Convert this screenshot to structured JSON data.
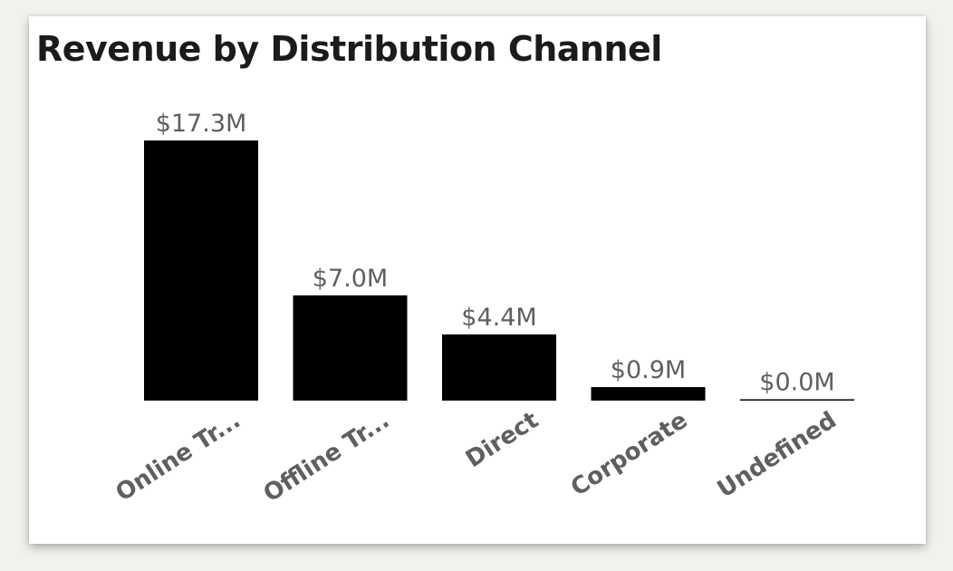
{
  "chart_data": {
    "type": "bar",
    "title": "Revenue by Distribution Channel",
    "categories": [
      "Online Tr...",
      "Offline Tr...",
      "Direct",
      "Corporate",
      "Undefined"
    ],
    "values": [
      17.3,
      7.0,
      4.4,
      0.9,
      0.0
    ],
    "data_labels": [
      "$17.3M",
      "$7.0M",
      "$4.4M",
      "$0.9M",
      "$0.0M"
    ],
    "unit": "$M",
    "ylim": [
      0,
      17.3
    ],
    "grid": false,
    "legend": "none",
    "bar_color": "#000000"
  }
}
